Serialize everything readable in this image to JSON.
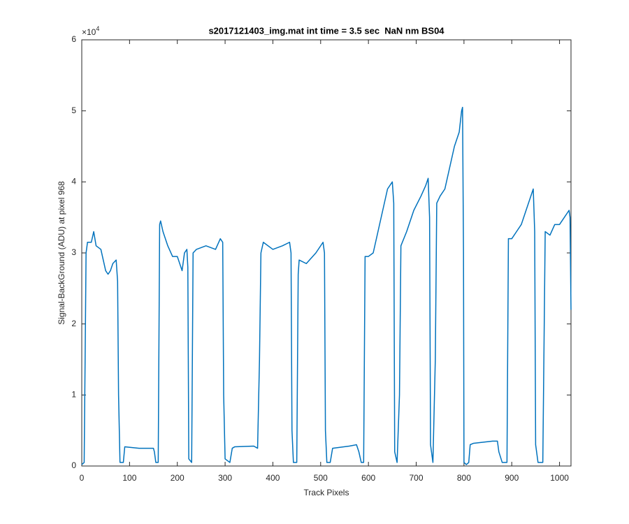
{
  "chart_data": {
    "type": "line",
    "title": "s2017121403_img.mat int time = 3.5 sec  NaN nm BS04",
    "x_label": "Track Pixels",
    "y_label": "Signal-BackGround (ADU) at pixel 968",
    "y_multiplier": {
      "base": "×10",
      "exponent": "4"
    },
    "xlim": [
      0,
      1024
    ],
    "ylim": [
      0,
      6
    ],
    "xticks": [
      0,
      100,
      200,
      300,
      400,
      500,
      600,
      700,
      800,
      900,
      1000
    ],
    "yticks": [
      0,
      1,
      2,
      3,
      4,
      5,
      6
    ],
    "grid": false,
    "series": [
      {
        "color": "#0072bd",
        "x": [
          0,
          5,
          7,
          9,
          12,
          20,
          25,
          30,
          40,
          45,
          50,
          55,
          60,
          65,
          72,
          75,
          77,
          80,
          87,
          90,
          120,
          150,
          152,
          155,
          160,
          163,
          165,
          170,
          180,
          190,
          200,
          210,
          215,
          220,
          222,
          224,
          230,
          233,
          240,
          260,
          280,
          290,
          295,
          297,
          300,
          310,
          315,
          320,
          360,
          368,
          372,
          375,
          380,
          400,
          420,
          435,
          438,
          440,
          443,
          450,
          453,
          455,
          470,
          490,
          505,
          508,
          510,
          513,
          520,
          525,
          560,
          575,
          580,
          585,
          590,
          593,
          600,
          610,
          620,
          630,
          640,
          650,
          653,
          655,
          660,
          665,
          668,
          680,
          695,
          710,
          720,
          725,
          728,
          730,
          735,
          740,
          743,
          750,
          760,
          770,
          780,
          790,
          795,
          797,
          799,
          800,
          805,
          810,
          813,
          820,
          860,
          870,
          873,
          880,
          890,
          893,
          900,
          910,
          920,
          930,
          940,
          945,
          948,
          950,
          955,
          965,
          968,
          970,
          980,
          990,
          1000,
          1010,
          1020,
          1022,
          1024
        ],
        "values": [
          0.02,
          0.05,
          1.5,
          3.0,
          3.15,
          3.15,
          3.3,
          3.1,
          3.05,
          2.9,
          2.75,
          2.7,
          2.75,
          2.85,
          2.9,
          2.6,
          1.0,
          0.05,
          0.05,
          0.27,
          0.25,
          0.25,
          0.2,
          0.05,
          0.05,
          3.4,
          3.45,
          3.3,
          3.1,
          2.95,
          2.95,
          2.75,
          3.0,
          3.05,
          2.8,
          0.1,
          0.05,
          3.0,
          3.05,
          3.1,
          3.05,
          3.2,
          3.15,
          1.0,
          0.1,
          0.05,
          0.25,
          0.27,
          0.28,
          0.25,
          1.5,
          3.0,
          3.15,
          3.05,
          3.1,
          3.15,
          3.0,
          0.5,
          0.05,
          0.05,
          2.7,
          2.9,
          2.85,
          3.0,
          3.15,
          3.0,
          0.5,
          0.05,
          0.05,
          0.25,
          0.28,
          0.3,
          0.2,
          0.05,
          0.05,
          2.95,
          2.95,
          3.0,
          3.3,
          3.6,
          3.9,
          4.0,
          3.7,
          0.2,
          0.05,
          1.0,
          3.1,
          3.3,
          3.6,
          3.8,
          3.95,
          4.05,
          3.5,
          0.3,
          0.05,
          1.5,
          3.7,
          3.8,
          3.9,
          4.2,
          4.5,
          4.7,
          5.0,
          5.05,
          3.0,
          0.05,
          0.02,
          0.05,
          0.3,
          0.32,
          0.35,
          0.35,
          0.2,
          0.05,
          0.05,
          3.2,
          3.2,
          3.3,
          3.4,
          3.6,
          3.8,
          3.9,
          3.3,
          0.3,
          0.05,
          0.05,
          2.0,
          3.3,
          3.25,
          3.4,
          3.4,
          3.5,
          3.6,
          3.5,
          2.2
        ]
      }
    ]
  }
}
